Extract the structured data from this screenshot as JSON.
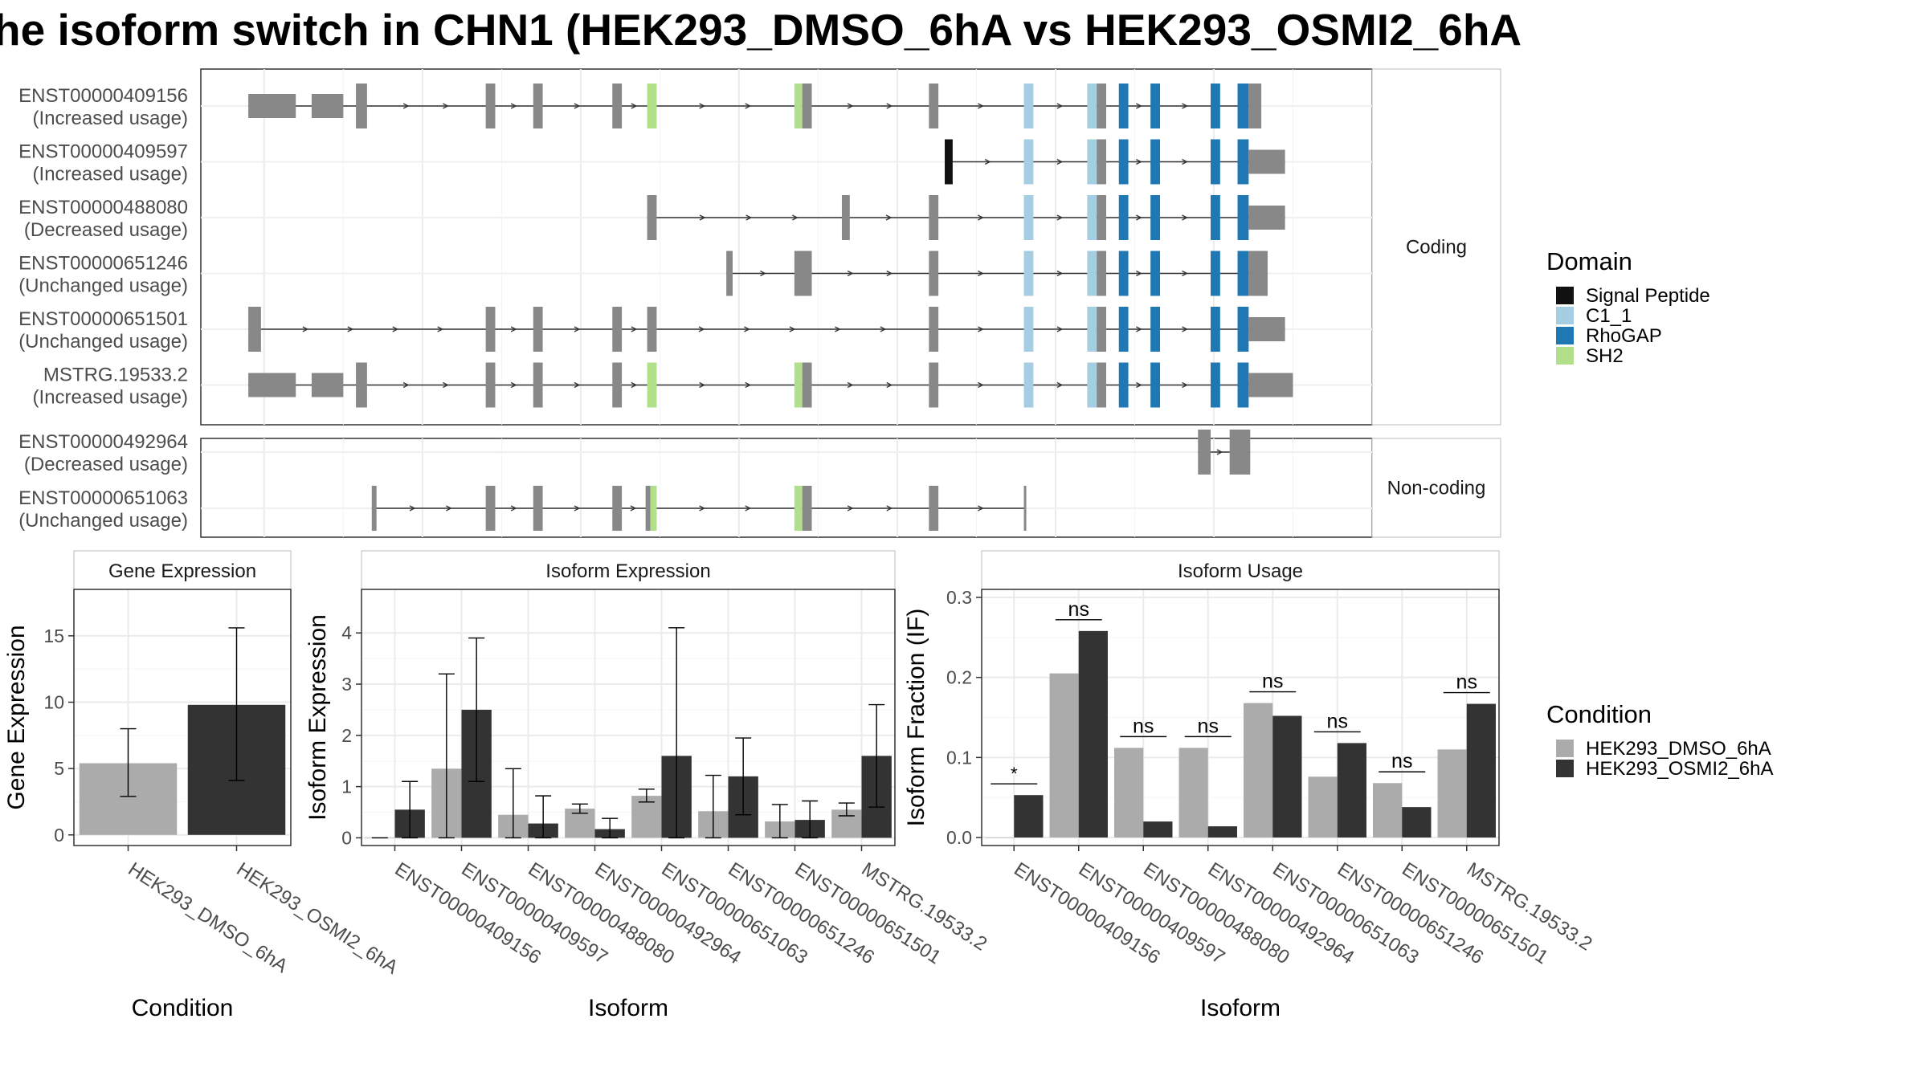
{
  "title": "he isoform switch in CHN1 (HEK293_DMSO_6hA vs HEK293_OSMI2_6hA",
  "structure": {
    "facets": [
      "Coding",
      "Non-coding"
    ],
    "transcripts": [
      {
        "id": "ENST00000409156",
        "usage": "(Increased usage)",
        "facet": "Coding",
        "exons": [
          [
            39,
            42,
            "g"
          ],
          [
            43,
            45,
            "g"
          ],
          [
            45.8,
            46.5,
            "g"
          ],
          [
            54,
            54.6,
            "g"
          ],
          [
            57,
            57.6,
            "g"
          ],
          [
            62,
            62.6,
            "g"
          ],
          [
            64.2,
            64.8,
            "SH2"
          ],
          [
            73.5,
            74,
            "SH2"
          ],
          [
            74,
            74.6,
            "g"
          ],
          [
            82,
            82.6,
            "g"
          ],
          [
            88,
            88.6,
            "C1_1"
          ],
          [
            92,
            92.6,
            "C1_1"
          ],
          [
            92.6,
            93.2,
            "g"
          ],
          [
            94,
            94.6,
            "RhoGAP"
          ],
          [
            96,
            96.6,
            "RhoGAP"
          ],
          [
            99.8,
            100.4,
            "RhoGAP"
          ],
          [
            101.5,
            102.2,
            "RhoGAP"
          ],
          [
            102.2,
            103,
            "g"
          ]
        ]
      },
      {
        "id": "ENST00000409597",
        "usage": "(Increased usage)",
        "facet": "Coding",
        "exons": [
          [
            83,
            83.5,
            "Signal Peptide"
          ],
          [
            88,
            88.6,
            "C1_1"
          ],
          [
            92,
            92.6,
            "C1_1"
          ],
          [
            92.6,
            93.2,
            "g"
          ],
          [
            94,
            94.6,
            "RhoGAP"
          ],
          [
            96,
            96.6,
            "RhoGAP"
          ],
          [
            99.8,
            100.4,
            "RhoGAP"
          ],
          [
            101.5,
            102.2,
            "RhoGAP"
          ],
          [
            102.2,
            104.5,
            "g"
          ]
        ]
      },
      {
        "id": "ENST00000488080",
        "usage": "(Decreased usage)",
        "facet": "Coding",
        "exons": [
          [
            64.2,
            64.8,
            "g"
          ],
          [
            76.5,
            77,
            "g"
          ],
          [
            82,
            82.6,
            "g"
          ],
          [
            88,
            88.6,
            "C1_1"
          ],
          [
            92,
            92.6,
            "C1_1"
          ],
          [
            92.6,
            93.2,
            "g"
          ],
          [
            94,
            94.6,
            "RhoGAP"
          ],
          [
            96,
            96.6,
            "RhoGAP"
          ],
          [
            99.8,
            100.4,
            "RhoGAP"
          ],
          [
            101.5,
            102.2,
            "RhoGAP"
          ],
          [
            102.2,
            104.5,
            "g"
          ]
        ]
      },
      {
        "id": "ENST00000651246",
        "usage": "(Unchanged usage)",
        "facet": "Coding",
        "exons": [
          [
            69.2,
            69.6,
            "g"
          ],
          [
            73.5,
            74.6,
            "g"
          ],
          [
            82,
            82.6,
            "g"
          ],
          [
            88,
            88.6,
            "C1_1"
          ],
          [
            92,
            92.6,
            "C1_1"
          ],
          [
            92.6,
            93.2,
            "g"
          ],
          [
            94,
            94.6,
            "RhoGAP"
          ],
          [
            96,
            96.6,
            "RhoGAP"
          ],
          [
            99.8,
            100.4,
            "RhoGAP"
          ],
          [
            101.5,
            102.2,
            "RhoGAP"
          ],
          [
            102.2,
            103.4,
            "g"
          ]
        ]
      },
      {
        "id": "ENST00000651501",
        "usage": "(Unchanged usage)",
        "facet": "Coding",
        "exons": [
          [
            39,
            39.8,
            "g"
          ],
          [
            54,
            54.6,
            "g"
          ],
          [
            57,
            57.6,
            "g"
          ],
          [
            62,
            62.6,
            "g"
          ],
          [
            64.2,
            64.8,
            "g"
          ],
          [
            82,
            82.6,
            "g"
          ],
          [
            88,
            88.6,
            "C1_1"
          ],
          [
            92,
            92.6,
            "C1_1"
          ],
          [
            92.6,
            93.2,
            "g"
          ],
          [
            94,
            94.6,
            "RhoGAP"
          ],
          [
            96,
            96.6,
            "RhoGAP"
          ],
          [
            99.8,
            100.4,
            "RhoGAP"
          ],
          [
            101.5,
            102.2,
            "RhoGAP"
          ],
          [
            102.2,
            104.5,
            "g"
          ]
        ]
      },
      {
        "id": "MSTRG.19533.2",
        "usage": "(Increased usage)",
        "facet": "Coding",
        "exons": [
          [
            39,
            42,
            "g"
          ],
          [
            43,
            45,
            "g"
          ],
          [
            45.8,
            46.5,
            "g"
          ],
          [
            54,
            54.6,
            "g"
          ],
          [
            57,
            57.6,
            "g"
          ],
          [
            62,
            62.6,
            "g"
          ],
          [
            64.2,
            64.8,
            "SH2"
          ],
          [
            73.5,
            74,
            "SH2"
          ],
          [
            74,
            74.6,
            "g"
          ],
          [
            82,
            82.6,
            "g"
          ],
          [
            88,
            88.6,
            "C1_1"
          ],
          [
            92,
            92.6,
            "C1_1"
          ],
          [
            92.6,
            93.2,
            "g"
          ],
          [
            94,
            94.6,
            "RhoGAP"
          ],
          [
            96,
            96.6,
            "RhoGAP"
          ],
          [
            99.8,
            100.4,
            "RhoGAP"
          ],
          [
            101.5,
            102.2,
            "RhoGAP"
          ],
          [
            102.2,
            105,
            "g"
          ]
        ]
      },
      {
        "id": "ENST00000492964",
        "usage": "(Decreased usage)",
        "facet": "Non-coding",
        "exons": [
          [
            99,
            99.8,
            "g"
          ],
          [
            101,
            102.3,
            "g"
          ]
        ]
      },
      {
        "id": "ENST00000651063",
        "usage": "(Unchanged usage)",
        "facet": "Non-coding",
        "exons": [
          [
            46.8,
            47.1,
            "g"
          ],
          [
            54,
            54.6,
            "g"
          ],
          [
            57,
            57.6,
            "g"
          ],
          [
            62,
            62.6,
            "g"
          ],
          [
            64.1,
            64.4,
            "g"
          ],
          [
            64.4,
            64.8,
            "SH2"
          ],
          [
            73.5,
            74,
            "SH2"
          ],
          [
            74,
            74.6,
            "g"
          ],
          [
            82,
            82.6,
            "g"
          ],
          [
            88,
            88.1,
            "g"
          ]
        ]
      }
    ]
  },
  "legend_domain": {
    "title": "Domain",
    "items": [
      {
        "label": "Signal Peptide",
        "color": "#111111"
      },
      {
        "label": "C1_1",
        "color": "#a6cee3"
      },
      {
        "label": "RhoGAP",
        "color": "#1f78b4"
      },
      {
        "label": "SH2",
        "color": "#b2df8a"
      }
    ]
  },
  "legend_condition": {
    "title": "Condition",
    "items": [
      {
        "label": "HEK293_DMSO_6hA",
        "color": "#ababab"
      },
      {
        "label": "HEK293_OSMI2_6hA",
        "color": "#333333"
      }
    ]
  },
  "chart_data": [
    {
      "type": "bar",
      "title": "Gene Expression",
      "xlabel": "Condition",
      "ylabel": "Gene Expression",
      "categories": [
        "HEK293_DMSO_6hA",
        "HEK293_OSMI2_6hA"
      ],
      "values": [
        5.4,
        9.8
      ],
      "error": [
        [
          2.9,
          8.0
        ],
        [
          4.1,
          15.6
        ]
      ],
      "colors": [
        "#ababab",
        "#333333"
      ],
      "ylim": [
        -0.8,
        18.5
      ],
      "yticks": [
        0,
        5,
        10,
        15
      ],
      "grid": true
    },
    {
      "type": "bar",
      "title": "Isoform Expression",
      "xlabel": "Isoform",
      "ylabel": "Isoform Expression",
      "categories": [
        "ENST00000409156",
        "ENST00000409597",
        "ENST00000488080",
        "ENST00000492964",
        "ENST00000651063",
        "ENST00000651246",
        "ENST00000651501",
        "MSTRG.19533.2"
      ],
      "series": [
        {
          "name": "HEK293_DMSO_6hA",
          "values": [
            0.0,
            1.35,
            0.45,
            0.57,
            0.82,
            0.52,
            0.32,
            0.55
          ],
          "error": [
            [
              0,
              0
            ],
            [
              0,
              3.2
            ],
            [
              0,
              1.35
            ],
            [
              0.48,
              0.66
            ],
            [
              0.7,
              0.95
            ],
            [
              0,
              1.22
            ],
            [
              0,
              0.65
            ],
            [
              0.43,
              0.68
            ]
          ]
        },
        {
          "name": "HEK293_OSMI2_6hA",
          "values": [
            0.55,
            2.5,
            0.28,
            0.17,
            1.6,
            1.2,
            0.35,
            1.6
          ],
          "error": [
            [
              0,
              1.1
            ],
            [
              1.1,
              3.9
            ],
            [
              0,
              0.82
            ],
            [
              0,
              0.38
            ],
            [
              0,
              4.1
            ],
            [
              0.45,
              1.95
            ],
            [
              0,
              0.72
            ],
            [
              0.6,
              2.6
            ]
          ]
        }
      ],
      "ylim": [
        -0.15,
        4.85
      ],
      "yticks": [
        0,
        1,
        2,
        3,
        4
      ],
      "grid": true
    },
    {
      "type": "bar",
      "title": "Isoform Usage",
      "xlabel": "Isoform",
      "ylabel": "Isoform Fraction (IF)",
      "categories": [
        "ENST00000409156",
        "ENST00000409597",
        "ENST00000488080",
        "ENST00000492964",
        "ENST00000651063",
        "ENST00000651246",
        "ENST00000651501",
        "MSTRG.19533.2"
      ],
      "series": [
        {
          "name": "HEK293_DMSO_6hA",
          "values": [
            0.0,
            0.205,
            0.112,
            0.112,
            0.168,
            0.076,
            0.068,
            0.11
          ]
        },
        {
          "name": "HEK293_OSMI2_6hA",
          "values": [
            0.053,
            0.258,
            0.02,
            0.014,
            0.152,
            0.118,
            0.038,
            0.167
          ]
        }
      ],
      "significance": [
        "*",
        "ns",
        "ns",
        "ns",
        "ns",
        "ns",
        "ns",
        "ns"
      ],
      "ylim": [
        -0.01,
        0.31
      ],
      "yticks": [
        0.0,
        0.1,
        0.2,
        0.3
      ],
      "ytick_labels": [
        "0.0",
        "0.1",
        "0.2",
        "0.3"
      ],
      "grid": true
    }
  ]
}
